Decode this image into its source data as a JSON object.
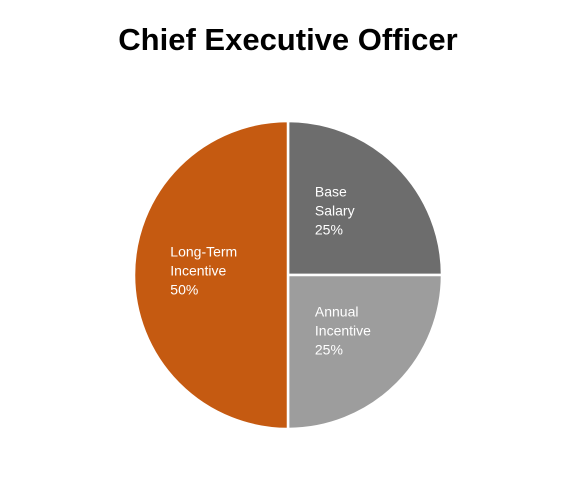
{
  "chart_data": {
    "type": "pie",
    "title": "Chief Executive Officer",
    "categories": [
      "Base Salary",
      "Annual Incentive",
      "Long-Term Incentive"
    ],
    "values": [
      25,
      25,
      50
    ],
    "value_labels": [
      "25%",
      "25%",
      "50%"
    ],
    "colors": [
      "#6d6d6d",
      "#9d9d9d",
      "#c55a11"
    ]
  }
}
